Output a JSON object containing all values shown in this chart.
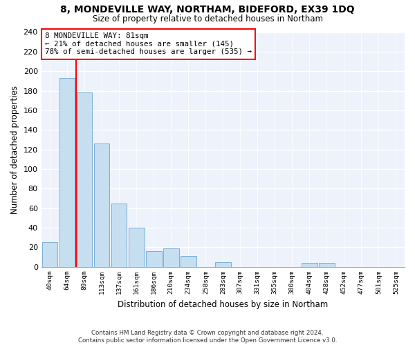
{
  "title": "8, MONDEVILLE WAY, NORTHAM, BIDEFORD, EX39 1DQ",
  "subtitle": "Size of property relative to detached houses in Northam",
  "xlabel": "Distribution of detached houses by size in Northam",
  "ylabel": "Number of detached properties",
  "bin_labels": [
    "40sqm",
    "64sqm",
    "89sqm",
    "113sqm",
    "137sqm",
    "161sqm",
    "186sqm",
    "210sqm",
    "234sqm",
    "258sqm",
    "283sqm",
    "307sqm",
    "331sqm",
    "355sqm",
    "380sqm",
    "404sqm",
    "428sqm",
    "452sqm",
    "477sqm",
    "501sqm",
    "525sqm"
  ],
  "bar_heights": [
    25,
    193,
    178,
    126,
    65,
    40,
    16,
    19,
    11,
    0,
    5,
    0,
    0,
    0,
    0,
    4,
    4,
    0,
    0,
    0,
    0
  ],
  "bar_color": "#c5dff0",
  "bar_edge_color": "#7aafd4",
  "property_sqm": 81,
  "pct_smaller": 21,
  "n_smaller": 145,
  "pct_larger_semi": 78,
  "n_larger_semi": 535,
  "ylim": [
    0,
    240
  ],
  "yticks": [
    0,
    20,
    40,
    60,
    80,
    100,
    120,
    140,
    160,
    180,
    200,
    220,
    240
  ],
  "footer_line1": "Contains HM Land Registry data © Crown copyright and database right 2024.",
  "footer_line2": "Contains public sector information licensed under the Open Government Licence v3.0.",
  "bg_color": "#eef2fb"
}
